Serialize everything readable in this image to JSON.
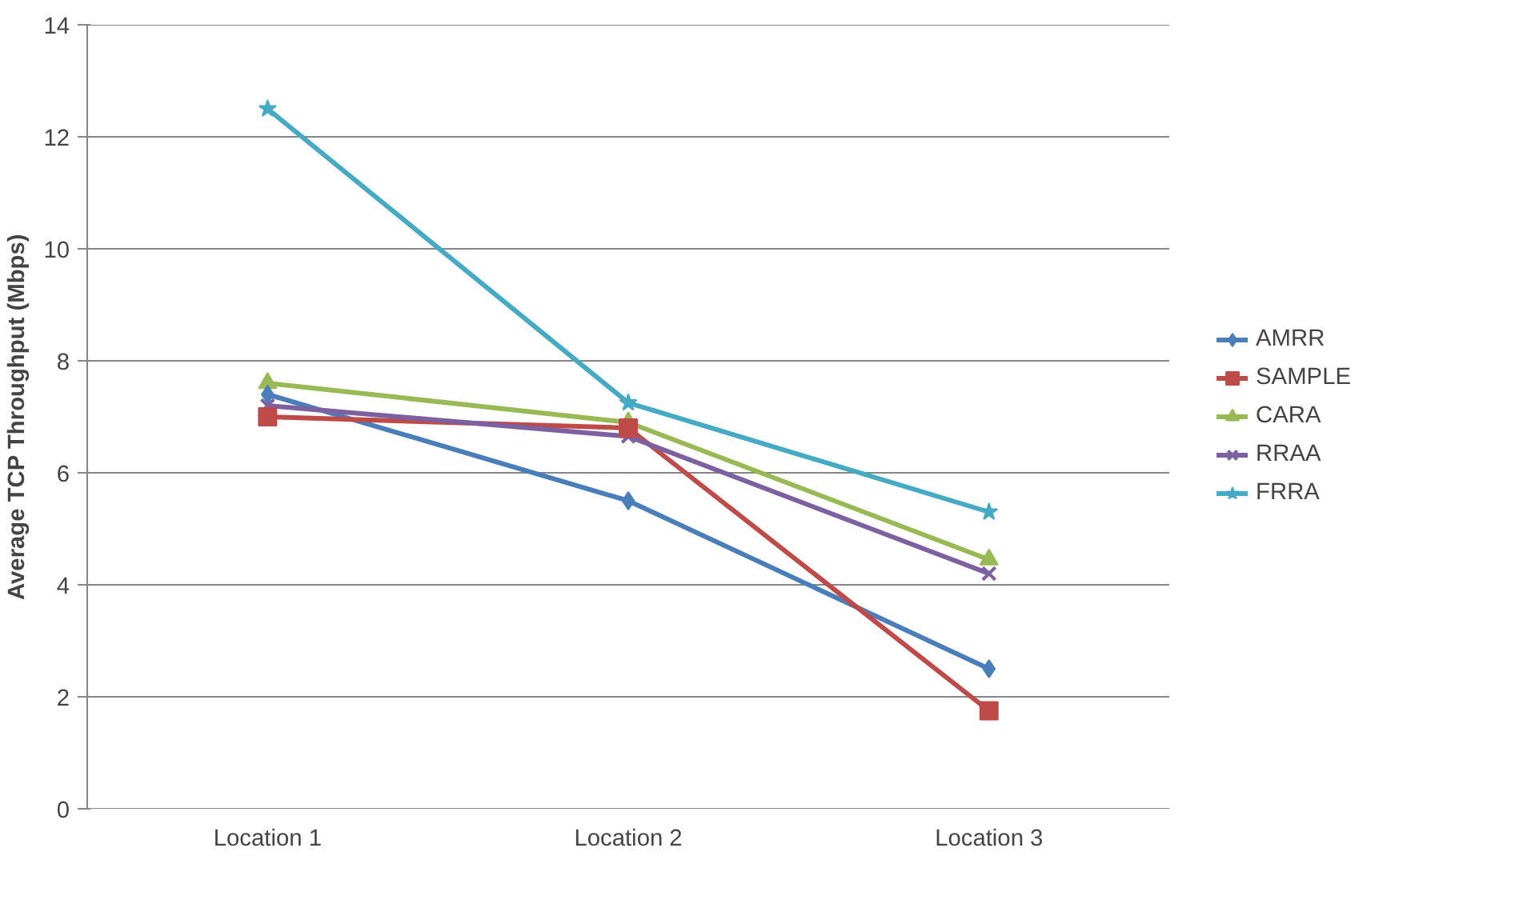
{
  "chart_data": {
    "type": "line",
    "ylabel": "Average TCP Throughput (Mbps)",
    "categories": [
      "Location 1",
      "Location 2",
      "Location 3"
    ],
    "series": [
      {
        "name": "AMRR",
        "color": "#4a7ebb",
        "marker": "diamond",
        "values": [
          7.4,
          5.5,
          2.5
        ]
      },
      {
        "name": "SAMPLE",
        "color": "#be4b48",
        "marker": "square",
        "values": [
          7.0,
          6.8,
          1.75
        ]
      },
      {
        "name": "CARA",
        "color": "#98b954",
        "marker": "triangle",
        "values": [
          7.6,
          6.9,
          4.45
        ]
      },
      {
        "name": "RRAA",
        "color": "#7d60a0",
        "marker": "cross",
        "values": [
          7.2,
          6.65,
          4.2
        ]
      },
      {
        "name": "FRRA",
        "color": "#46aac5",
        "marker": "star",
        "values": [
          12.5,
          7.25,
          5.3
        ]
      }
    ],
    "ylim": [
      0,
      14
    ],
    "yticks": [
      0,
      2,
      4,
      6,
      8,
      10,
      12,
      14
    ],
    "grid": "y",
    "legend": "right",
    "line_style": "solid"
  }
}
